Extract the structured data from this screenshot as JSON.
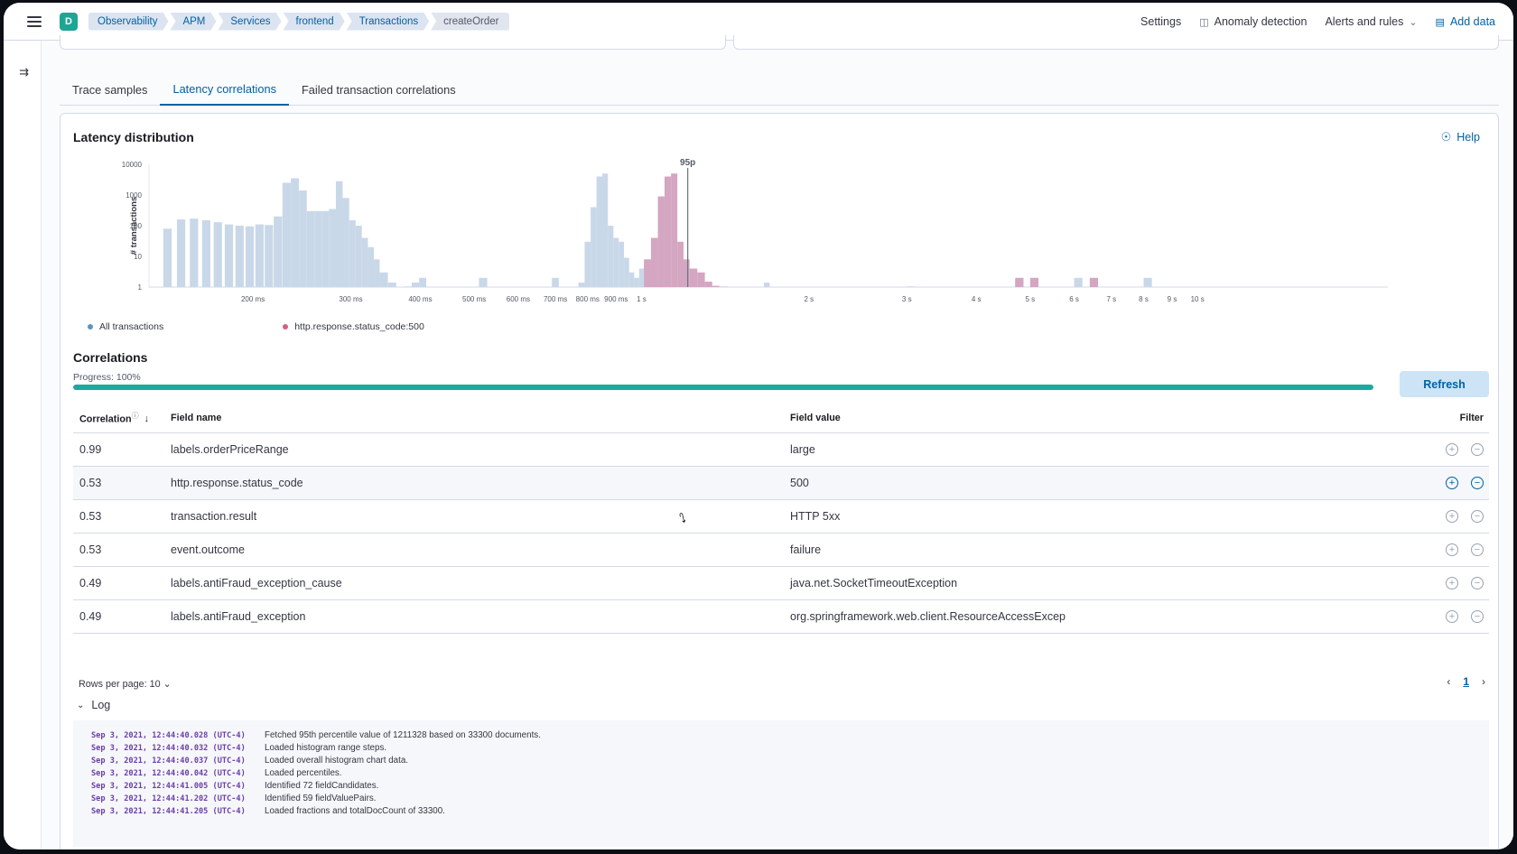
{
  "header": {
    "space_letter": "D",
    "breadcrumbs": [
      "Observability",
      "APM",
      "Services",
      "frontend",
      "Transactions",
      "createOrder"
    ],
    "settings": "Settings",
    "anomaly": "Anomaly detection",
    "alerts": "Alerts and rules",
    "add_data": "Add data"
  },
  "tabs": [
    "Trace samples",
    "Latency correlations",
    "Failed transaction correlations"
  ],
  "panel": {
    "title": "Latency distribution",
    "help": "Help"
  },
  "chart_data": {
    "type": "bar",
    "xscale": "log",
    "yscale": "log",
    "ylabel": "# transactions",
    "yticks": [
      "10000",
      "1000",
      "100",
      "10",
      "1"
    ],
    "xticks": [
      "200 ms",
      "300 ms",
      "400 ms",
      "500 ms",
      "600 ms",
      "700 ms",
      "800 ms",
      "900 ms",
      "1 s",
      "2 s",
      "3 s",
      "4 s",
      "5 s",
      "6 s",
      "7 s",
      "8 s",
      "9 s",
      "10 s"
    ],
    "annotation": "95p",
    "colors": {
      "all": "#6092c0",
      "all_fill": "#c9d8e8",
      "failed": "#d36086",
      "failed_fill": "#d4a6c1"
    },
    "series": [
      {
        "name": "All transactions",
        "x_ms": [
          138,
          146,
          154,
          162,
          170,
          178,
          186,
          194,
          202,
          210,
          218,
          226,
          234,
          242,
          250,
          258,
          266,
          274,
          282,
          290,
          298,
          306,
          314,
          322,
          330,
          338,
          350,
          362,
          374,
          386,
          398,
          410,
          425,
          440,
          455,
          470,
          490,
          510,
          530,
          550,
          570,
          590,
          610,
          630,
          650,
          670,
          690,
          710,
          730,
          750,
          770,
          790,
          810,
          830,
          850,
          870,
          890,
          910,
          930,
          950,
          970,
          990,
          1010,
          1040,
          1070,
          1100,
          1130,
          1160,
          1190,
          1220,
          1260,
          1300,
          1340,
          1380,
          1420,
          1460,
          1500,
          1540,
          1580,
          1620,
          1660,
          1700,
          2800,
          2900,
          3000,
          4700,
          5000,
          6000,
          6400,
          7600,
          8000,
          8400
        ],
        "values": [
          80,
          160,
          170,
          150,
          130,
          110,
          100,
          95,
          110,
          105,
          200,
          2500,
          3500,
          1400,
          300,
          300,
          300,
          350,
          2800,
          800,
          150,
          100,
          40,
          20,
          8,
          3,
          1.4,
          1,
          1.05,
          1.4,
          2,
          1,
          1,
          1.01,
          1,
          1,
          1.01,
          2,
          1,
          1,
          1.01,
          1,
          1,
          1.01,
          1,
          1,
          2,
          1,
          1,
          1.01,
          1.4,
          30,
          400,
          4000,
          5000,
          100,
          40,
          30,
          9,
          3,
          2,
          4,
          5,
          1.5,
          1,
          1,
          1,
          1,
          1,
          1,
          1.01,
          1,
          1,
          1.01,
          1,
          1,
          1.01,
          1,
          1,
          1.01,
          1.4,
          1,
          1.01,
          1.03,
          1,
          1.8,
          1.01,
          2,
          1,
          1,
          2,
          1.02
        ]
      },
      {
        "name": "http.response.status_code:500",
        "x_ms": [
          1010,
          1040,
          1070,
          1100,
          1130,
          1160,
          1190,
          1220,
          1260,
          1300,
          1340,
          1380,
          2800,
          2900,
          3000,
          4700,
          5000,
          6000,
          6400,
          7600,
          8000,
          8400
        ],
        "values": [
          8,
          40,
          900,
          4000,
          5000,
          30,
          8,
          4,
          3,
          1.5,
          1.1,
          1.03,
          1.02,
          1.01,
          1.03,
          2,
          2,
          1.01,
          2,
          1.02,
          1.02,
          1.01
        ]
      }
    ],
    "percentile_95_ms": 1211
  },
  "legend": [
    "All transactions",
    "http.response.status_code:500"
  ],
  "correlations": {
    "title": "Correlations",
    "progress_label": "Progress: 100%",
    "progress": 1.0,
    "refresh": "Refresh",
    "columns": {
      "correlation": "Correlation",
      "field_name": "Field name",
      "field_value": "Field value",
      "filter": "Filter"
    },
    "rows": [
      {
        "correlation": "0.99",
        "field": "labels.orderPriceRange",
        "value": "large"
      },
      {
        "correlation": "0.53",
        "field": "http.response.status_code",
        "value": "500"
      },
      {
        "correlation": "0.53",
        "field": "transaction.result",
        "value": "HTTP 5xx"
      },
      {
        "correlation": "0.53",
        "field": "event.outcome",
        "value": "failure"
      },
      {
        "correlation": "0.49",
        "field": "labels.antiFraud_exception_cause",
        "value": "java.net.SocketTimeoutException"
      },
      {
        "correlation": "0.49",
        "field": "labels.antiFraud_exception",
        "value": "org.springframework.web.client.ResourceAccessExcep"
      }
    ],
    "rows_per_page": "Rows per page: 10",
    "page": "1"
  },
  "log": {
    "label": "Log",
    "lines": [
      {
        "ts": "Sep 3, 2021, 12:44:40.028 (UTC-4)",
        "msg": "Fetched 95th percentile value of 1211328 based on 33300 documents."
      },
      {
        "ts": "Sep 3, 2021, 12:44:40.032 (UTC-4)",
        "msg": "Loaded histogram range steps."
      },
      {
        "ts": "Sep 3, 2021, 12:44:40.037 (UTC-4)",
        "msg": "Loaded overall histogram chart data."
      },
      {
        "ts": "Sep 3, 2021, 12:44:40.042 (UTC-4)",
        "msg": "Loaded percentiles."
      },
      {
        "ts": "Sep 3, 2021, 12:44:41.005 (UTC-4)",
        "msg": "Identified 72 fieldCandidates."
      },
      {
        "ts": "Sep 3, 2021, 12:44:41.202 (UTC-4)",
        "msg": "Identified 59 fieldValuePairs."
      },
      {
        "ts": "Sep 3, 2021, 12:44:41.205 (UTC-4)",
        "msg": "Loaded fractions and totalDocCount of 33300."
      }
    ]
  }
}
